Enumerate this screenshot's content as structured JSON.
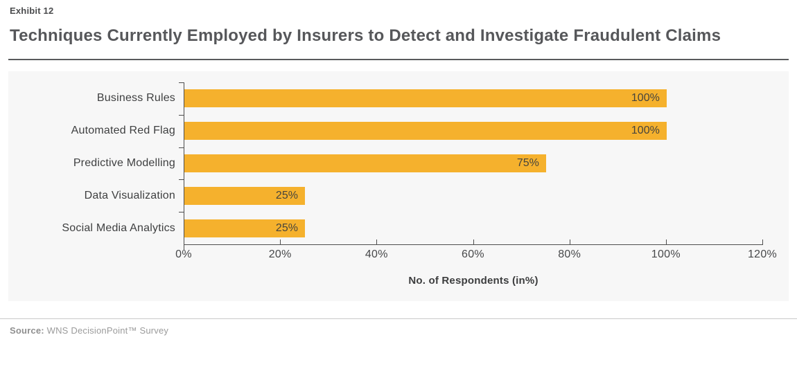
{
  "exhibit_label": "Exhibit 12",
  "title": "Techniques Currently Employed by Insurers to Detect and Investigate Fraudulent Claims",
  "source": {
    "label": "Source:",
    "text": "WNS DecisionPoint™ Survey"
  },
  "chart_data": {
    "type": "bar",
    "orientation": "horizontal",
    "categories": [
      "Business Rules",
      "Automated Red Flag",
      "Predictive Modelling",
      "Data Visualization",
      "Social Media Analytics"
    ],
    "values": [
      100,
      100,
      75,
      25,
      25
    ],
    "value_labels": [
      "100%",
      "100%",
      "75%",
      "25%",
      "25%"
    ],
    "title": "Techniques Currently Employed by Insurers to Detect and Investigate Fraudulent Claims",
    "xlabel": "No. of Respondents (in%)",
    "ylabel": "",
    "xlim": [
      0,
      120
    ],
    "x_tick_values": [
      0,
      20,
      40,
      60,
      80,
      100,
      120
    ],
    "x_tick_labels": [
      "0%",
      "20%",
      "40%",
      "60%",
      "80%",
      "100%",
      "120%"
    ],
    "grid": false,
    "legend": null,
    "bar_color": "#F5B12D",
    "plot_background": "#F7F7F7",
    "axis_color": "#4D4D4D"
  }
}
